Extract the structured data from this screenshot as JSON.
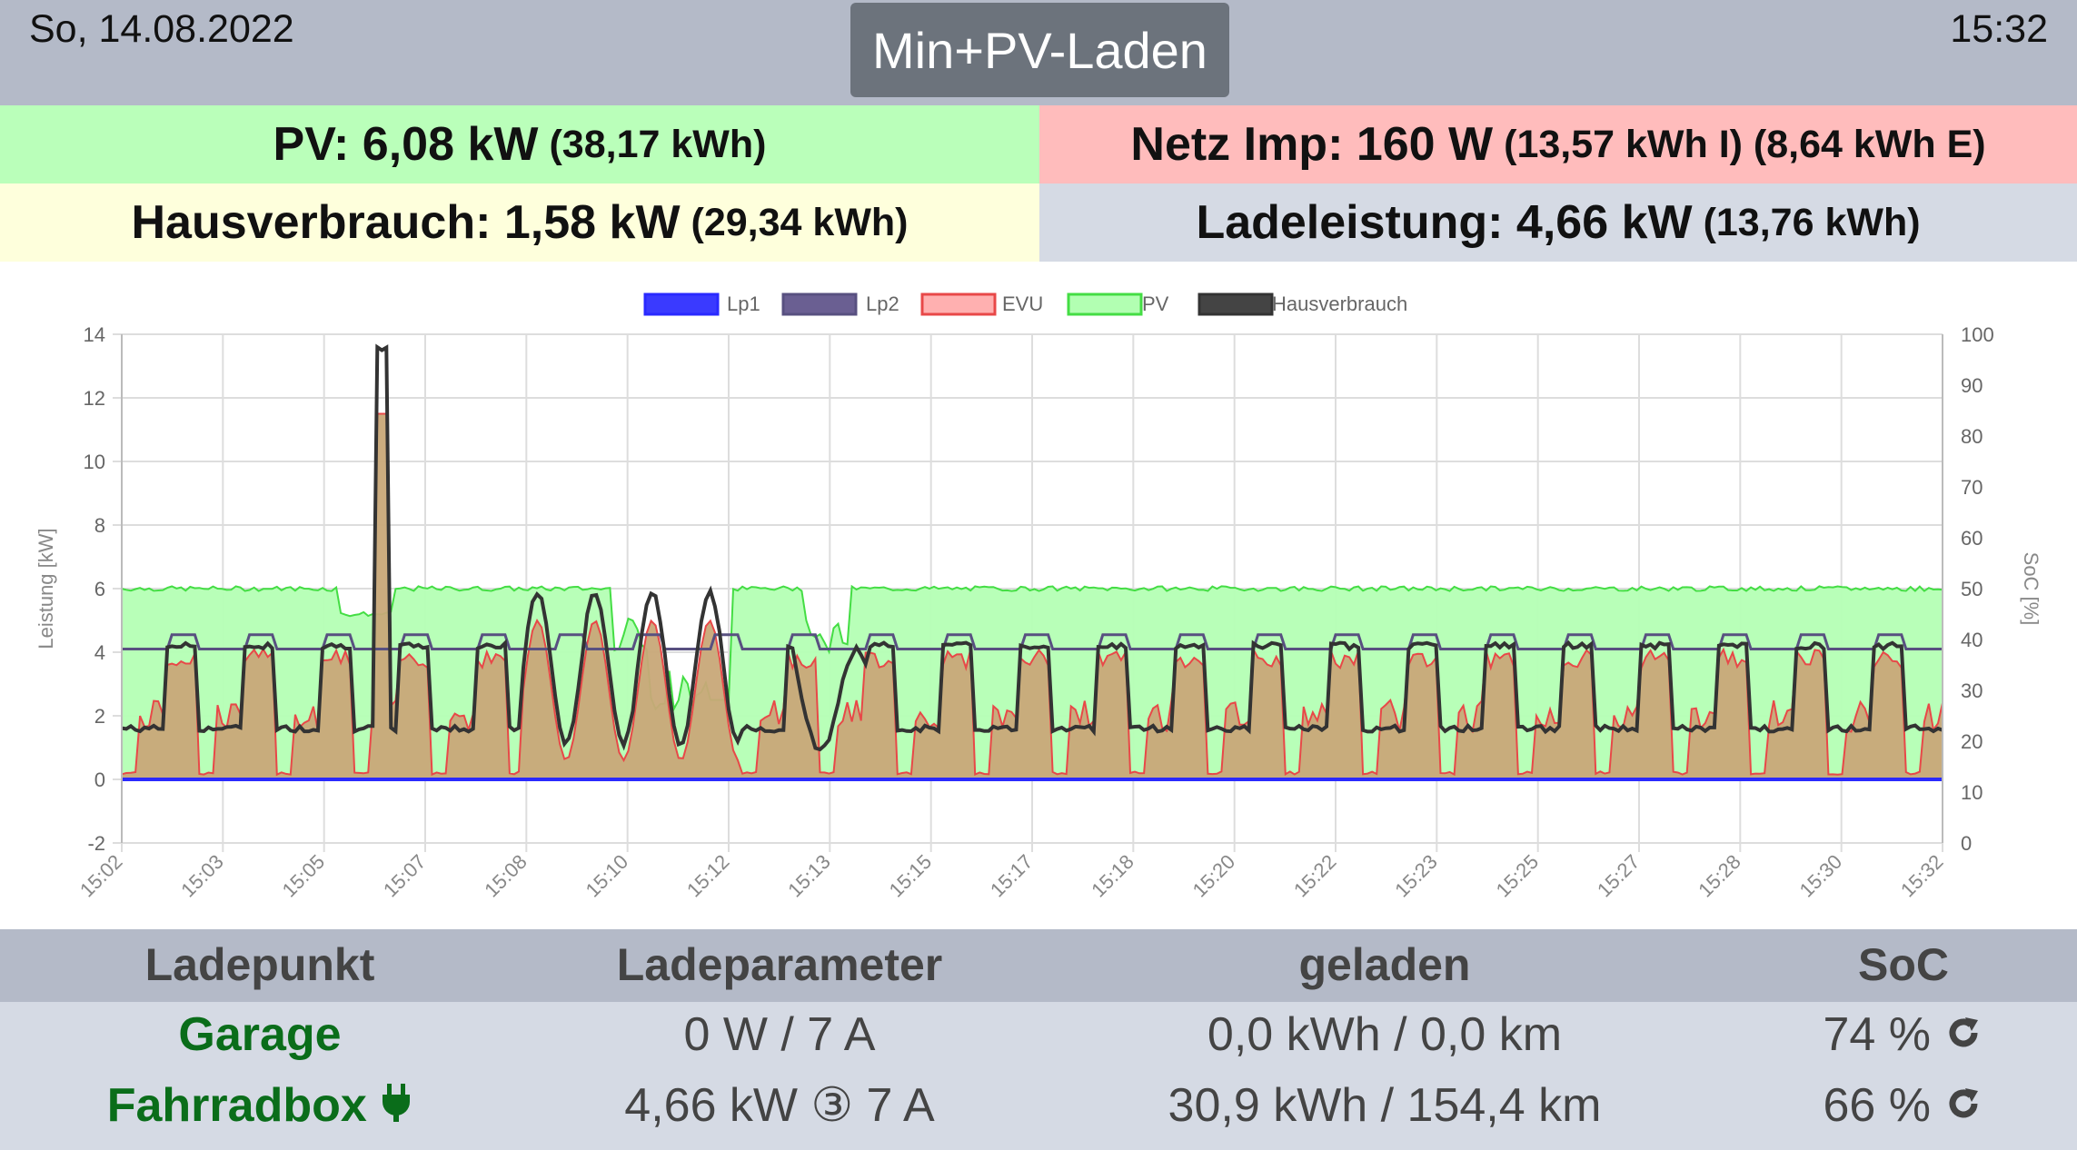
{
  "header": {
    "date": "So, 14.08.2022",
    "time": "15:32",
    "mode_button": "Min+PV-Laden"
  },
  "summary": {
    "pv_main": "PV: 6,08 kW",
    "pv_sub": "(38,17 kWh)",
    "netz_main": "Netz Imp: 160 W",
    "netz_sub": "(13,57 kWh I) (8,64 kWh E)",
    "haus_main": "Hausverbrauch: 1,58 kW",
    "haus_sub": "(29,34 kWh)",
    "lade_main": "Ladeleistung: 4,66 kW",
    "lade_sub": "(13,76 kWh)"
  },
  "colors": {
    "pv_bg": "#baffba",
    "netz_bg": "#ffbcbc",
    "haus_bg": "#feffdc",
    "lade_bg": "#d5dae4",
    "lp_name": "#0a6d1a"
  },
  "chart_data": {
    "type": "line",
    "legend": [
      "Lp1",
      "Lp2",
      "EVU",
      "PV",
      "Hausverbrauch"
    ],
    "legend_position": "top",
    "ylabel": "Leistung [kW]",
    "y2label": "SoC [%]",
    "ylim": [
      -2,
      14
    ],
    "y2lim": [
      0,
      100
    ],
    "y_ticks": [
      -2,
      0,
      2,
      4,
      6,
      8,
      10,
      12,
      14
    ],
    "y2_ticks": [
      0,
      10,
      20,
      30,
      40,
      50,
      60,
      70,
      80,
      90,
      100
    ],
    "x_ticks": [
      "15:02",
      "15:03",
      "15:05",
      "15:07",
      "15:08",
      "15:10",
      "15:12",
      "15:13",
      "15:15",
      "15:17",
      "15:18",
      "15:20",
      "15:22",
      "15:23",
      "15:25",
      "15:27",
      "15:28",
      "15:30",
      "15:32"
    ],
    "grid": true,
    "series_colors": {
      "Lp1": "#2a2aff",
      "Lp2": "#585080",
      "EVU": "#e84848",
      "PV": "#44dd44",
      "Hausverbrauch": "#333333"
    },
    "pv_level_kw": 6.0,
    "lp2_level_kw": 4.1,
    "lp1_level_kw": 0,
    "haus_high_kw": 4.2,
    "haus_low_kw": 1.6,
    "evu_peak_kw": 11.5,
    "haus_peak_kw": 13.5,
    "evu_peak_time": "15:06"
  },
  "ladepunkte": {
    "headers": [
      "Ladepunkt",
      "Ladeparameter",
      "geladen",
      "SoC"
    ],
    "rows": [
      {
        "name": "Garage",
        "param": "0 W / 7 A",
        "geladen": "0,0 kWh / 0,0 km",
        "soc": "74 %",
        "plugged": false
      },
      {
        "name": "Fahrradbox",
        "param": "4,66 kW ③ 7 A",
        "geladen": "30,9 kWh / 154,4 km",
        "soc": "66 %",
        "plugged": true
      }
    ]
  }
}
